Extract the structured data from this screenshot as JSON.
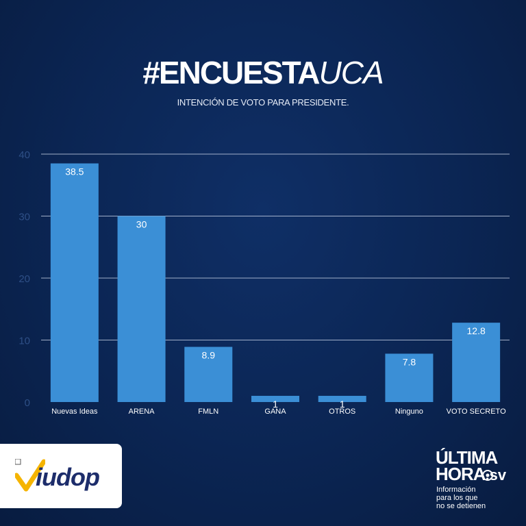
{
  "title": {
    "bold": "#ENCUESTA",
    "light": "UCA"
  },
  "subtitle": "INTENCIÓN DE VOTO PARA PRESIDENTE.",
  "chart_data": {
    "type": "bar",
    "categories": [
      "Nuevas Ideas",
      "ARENA",
      "FMLN",
      "GANA",
      "OTROS",
      "Ninguno",
      "VOTO SECRETO"
    ],
    "values": [
      38.5,
      30,
      8.9,
      1,
      1,
      7.8,
      12.8
    ],
    "value_labels": [
      "38.5",
      "30",
      "8.9",
      "1",
      "1",
      "7.8",
      "12.8"
    ],
    "ylim": [
      0,
      40
    ],
    "yticks": [
      0,
      10,
      20,
      30,
      40
    ],
    "grid": true,
    "bar_color": "#3b8fd6",
    "grid_color": "#c7d2e6"
  },
  "logos": {
    "iudop": "iudop",
    "ultima_hora": {
      "line1": "ÚLTIMA",
      "line2": "HORA",
      "suffix": ".sv"
    },
    "tagline": [
      "Información",
      "para los que",
      "no se detienen"
    ]
  },
  "colors": {
    "background": "#0b2553",
    "iudop_text": "#1d2d6b",
    "iudop_check": "#f5b400"
  }
}
